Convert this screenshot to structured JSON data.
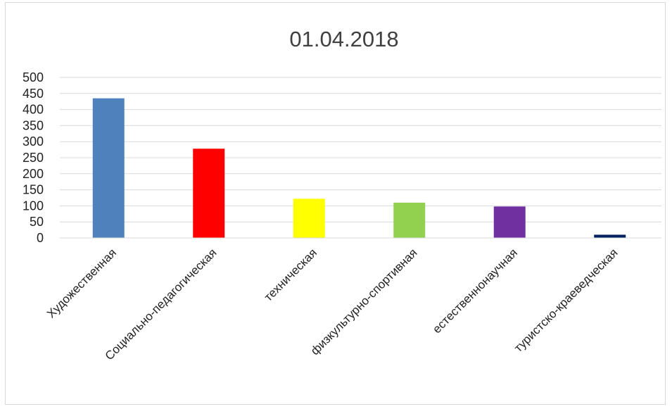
{
  "chart_data": {
    "type": "bar",
    "title": "01.04.2018",
    "xlabel": "",
    "ylabel": "",
    "ylim": [
      0,
      500
    ],
    "yticks": [
      0,
      50,
      100,
      150,
      200,
      250,
      300,
      350,
      400,
      450,
      500
    ],
    "grid": true,
    "legend": "none",
    "categories": [
      "Художественная",
      "Социально-педагогическая",
      "техническая",
      "физкультурно-спортивная",
      "естественнонаучная",
      "туристско-краеведческая"
    ],
    "values": [
      435,
      278,
      122,
      110,
      98,
      10
    ],
    "colors": [
      "#4f81bd",
      "#ff0000",
      "#ffff00",
      "#92d050",
      "#7030a0",
      "#002060"
    ]
  }
}
